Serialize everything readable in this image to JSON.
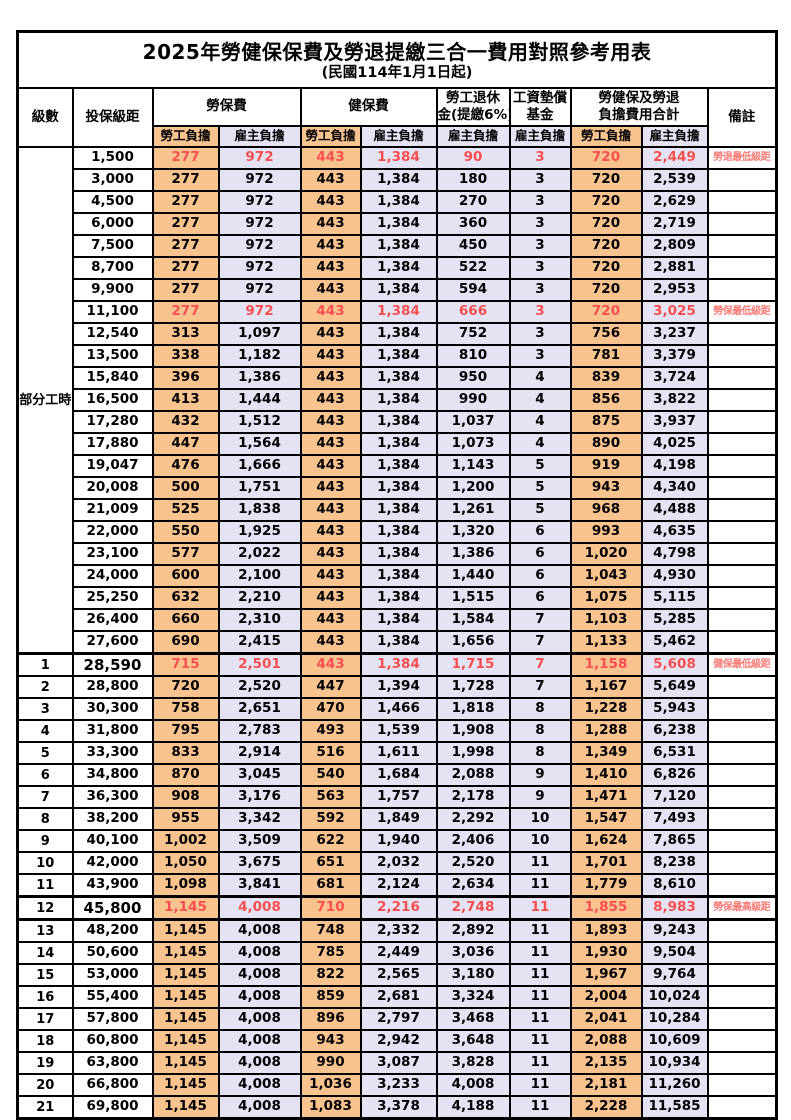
{
  "title": "2025年勞健保保費及勞退提繳三合一費用對照參考用表",
  "subtitle": "(民國114年1月1日起)",
  "header": {
    "level": "級數",
    "bracket": "投保級距",
    "labor_insurance": "勞保費",
    "health_insurance": "健保費",
    "pension_line1": "勞工退休",
    "pension_line2": "金(提繳6%)",
    "wage_fund_line1": "工資墊償",
    "wage_fund_line2": "基金",
    "total_line1": "勞健保及勞退",
    "total_line2": "負擔費用合計",
    "remark": "備註",
    "employee": "勞工負擔",
    "employer": "雇主負擔"
  },
  "part_time": {
    "label": "部分工時",
    "row_count": 23
  },
  "colors": {
    "employee_bg": "#f8c38e",
    "employer_bg": "#e4e3f3",
    "highlight_text": "#fb4f4f",
    "remark_text": "#fb7b76",
    "border": "#000000"
  },
  "rows": [
    {
      "lv": "",
      "bracket": "1,500",
      "v": [
        "277",
        "972",
        "443",
        "1,384",
        "90",
        "3",
        "720",
        "2,449"
      ],
      "remark": "勞退最低級距",
      "red": true
    },
    {
      "lv": "",
      "bracket": "3,000",
      "v": [
        "277",
        "972",
        "443",
        "1,384",
        "180",
        "3",
        "720",
        "2,539"
      ]
    },
    {
      "lv": "",
      "bracket": "4,500",
      "v": [
        "277",
        "972",
        "443",
        "1,384",
        "270",
        "3",
        "720",
        "2,629"
      ]
    },
    {
      "lv": "",
      "bracket": "6,000",
      "v": [
        "277",
        "972",
        "443",
        "1,384",
        "360",
        "3",
        "720",
        "2,719"
      ]
    },
    {
      "lv": "",
      "bracket": "7,500",
      "v": [
        "277",
        "972",
        "443",
        "1,384",
        "450",
        "3",
        "720",
        "2,809"
      ]
    },
    {
      "lv": "",
      "bracket": "8,700",
      "v": [
        "277",
        "972",
        "443",
        "1,384",
        "522",
        "3",
        "720",
        "2,881"
      ]
    },
    {
      "lv": "",
      "bracket": "9,900",
      "v": [
        "277",
        "972",
        "443",
        "1,384",
        "594",
        "3",
        "720",
        "2,953"
      ]
    },
    {
      "lv": "",
      "bracket": "11,100",
      "v": [
        "277",
        "972",
        "443",
        "1,384",
        "666",
        "3",
        "720",
        "3,025"
      ],
      "remark": "勞保最低級距",
      "red": true
    },
    {
      "lv": "",
      "bracket": "12,540",
      "v": [
        "313",
        "1,097",
        "443",
        "1,384",
        "752",
        "3",
        "756",
        "3,237"
      ]
    },
    {
      "lv": "",
      "bracket": "13,500",
      "v": [
        "338",
        "1,182",
        "443",
        "1,384",
        "810",
        "3",
        "781",
        "3,379"
      ]
    },
    {
      "lv": "",
      "bracket": "15,840",
      "v": [
        "396",
        "1,386",
        "443",
        "1,384",
        "950",
        "4",
        "839",
        "3,724"
      ]
    },
    {
      "lv": "",
      "bracket": "16,500",
      "v": [
        "413",
        "1,444",
        "443",
        "1,384",
        "990",
        "4",
        "856",
        "3,822"
      ]
    },
    {
      "lv": "",
      "bracket": "17,280",
      "v": [
        "432",
        "1,512",
        "443",
        "1,384",
        "1,037",
        "4",
        "875",
        "3,937"
      ]
    },
    {
      "lv": "",
      "bracket": "17,880",
      "v": [
        "447",
        "1,564",
        "443",
        "1,384",
        "1,073",
        "4",
        "890",
        "4,025"
      ]
    },
    {
      "lv": "",
      "bracket": "19,047",
      "v": [
        "476",
        "1,666",
        "443",
        "1,384",
        "1,143",
        "5",
        "919",
        "4,198"
      ]
    },
    {
      "lv": "",
      "bracket": "20,008",
      "v": [
        "500",
        "1,751",
        "443",
        "1,384",
        "1,200",
        "5",
        "943",
        "4,340"
      ]
    },
    {
      "lv": "",
      "bracket": "21,009",
      "v": [
        "525",
        "1,838",
        "443",
        "1,384",
        "1,261",
        "5",
        "968",
        "4,488"
      ]
    },
    {
      "lv": "",
      "bracket": "22,000",
      "v": [
        "550",
        "1,925",
        "443",
        "1,384",
        "1,320",
        "6",
        "993",
        "4,635"
      ]
    },
    {
      "lv": "",
      "bracket": "23,100",
      "v": [
        "577",
        "2,022",
        "443",
        "1,384",
        "1,386",
        "6",
        "1,020",
        "4,798"
      ]
    },
    {
      "lv": "",
      "bracket": "24,000",
      "v": [
        "600",
        "2,100",
        "443",
        "1,384",
        "1,440",
        "6",
        "1,043",
        "4,930"
      ]
    },
    {
      "lv": "",
      "bracket": "25,250",
      "v": [
        "632",
        "2,210",
        "443",
        "1,384",
        "1,515",
        "6",
        "1,075",
        "5,115"
      ]
    },
    {
      "lv": "",
      "bracket": "26,400",
      "v": [
        "660",
        "2,310",
        "443",
        "1,384",
        "1,584",
        "7",
        "1,103",
        "5,285"
      ]
    },
    {
      "lv": "",
      "bracket": "27,600",
      "v": [
        "690",
        "2,415",
        "443",
        "1,384",
        "1,656",
        "7",
        "1,133",
        "5,462"
      ]
    },
    {
      "lv": "1",
      "bracket": "28,590",
      "v": [
        "715",
        "2,501",
        "443",
        "1,384",
        "1,715",
        "7",
        "1,158",
        "5,608"
      ],
      "remark": "健保最低級距",
      "red": true,
      "bold": true,
      "thick_top": true
    },
    {
      "lv": "2",
      "bracket": "28,800",
      "v": [
        "720",
        "2,520",
        "447",
        "1,394",
        "1,728",
        "7",
        "1,167",
        "5,649"
      ]
    },
    {
      "lv": "3",
      "bracket": "30,300",
      "v": [
        "758",
        "2,651",
        "470",
        "1,466",
        "1,818",
        "8",
        "1,228",
        "5,943"
      ]
    },
    {
      "lv": "4",
      "bracket": "31,800",
      "v": [
        "795",
        "2,783",
        "493",
        "1,539",
        "1,908",
        "8",
        "1,288",
        "6,238"
      ]
    },
    {
      "lv": "5",
      "bracket": "33,300",
      "v": [
        "833",
        "2,914",
        "516",
        "1,611",
        "1,998",
        "8",
        "1,349",
        "6,531"
      ]
    },
    {
      "lv": "6",
      "bracket": "34,800",
      "v": [
        "870",
        "3,045",
        "540",
        "1,684",
        "2,088",
        "9",
        "1,410",
        "6,826"
      ]
    },
    {
      "lv": "7",
      "bracket": "36,300",
      "v": [
        "908",
        "3,176",
        "563",
        "1,757",
        "2,178",
        "9",
        "1,471",
        "7,120"
      ]
    },
    {
      "lv": "8",
      "bracket": "38,200",
      "v": [
        "955",
        "3,342",
        "592",
        "1,849",
        "2,292",
        "10",
        "1,547",
        "7,493"
      ]
    },
    {
      "lv": "9",
      "bracket": "40,100",
      "v": [
        "1,002",
        "3,509",
        "622",
        "1,940",
        "2,406",
        "10",
        "1,624",
        "7,865"
      ]
    },
    {
      "lv": "10",
      "bracket": "42,000",
      "v": [
        "1,050",
        "3,675",
        "651",
        "2,032",
        "2,520",
        "11",
        "1,701",
        "8,238"
      ]
    },
    {
      "lv": "11",
      "bracket": "43,900",
      "v": [
        "1,098",
        "3,841",
        "681",
        "2,124",
        "2,634",
        "11",
        "1,779",
        "8,610"
      ]
    },
    {
      "lv": "12",
      "bracket": "45,800",
      "v": [
        "1,145",
        "4,008",
        "710",
        "2,216",
        "2,748",
        "11",
        "1,855",
        "8,983"
      ],
      "remark": "勞保最高級距",
      "red": true,
      "bold": true,
      "thick_top": true,
      "thick_bottom": true
    },
    {
      "lv": "13",
      "bracket": "48,200",
      "v": [
        "1,145",
        "4,008",
        "748",
        "2,332",
        "2,892",
        "11",
        "1,893",
        "9,243"
      ]
    },
    {
      "lv": "14",
      "bracket": "50,600",
      "v": [
        "1,145",
        "4,008",
        "785",
        "2,449",
        "3,036",
        "11",
        "1,930",
        "9,504"
      ]
    },
    {
      "lv": "15",
      "bracket": "53,000",
      "v": [
        "1,145",
        "4,008",
        "822",
        "2,565",
        "3,180",
        "11",
        "1,967",
        "9,764"
      ]
    },
    {
      "lv": "16",
      "bracket": "55,400",
      "v": [
        "1,145",
        "4,008",
        "859",
        "2,681",
        "3,324",
        "11",
        "2,004",
        "10,024"
      ]
    },
    {
      "lv": "17",
      "bracket": "57,800",
      "v": [
        "1,145",
        "4,008",
        "896",
        "2,797",
        "3,468",
        "11",
        "2,041",
        "10,284"
      ]
    },
    {
      "lv": "18",
      "bracket": "60,800",
      "v": [
        "1,145",
        "4,008",
        "943",
        "2,942",
        "3,648",
        "11",
        "2,088",
        "10,609"
      ]
    },
    {
      "lv": "19",
      "bracket": "63,800",
      "v": [
        "1,145",
        "4,008",
        "990",
        "3,087",
        "3,828",
        "11",
        "2,135",
        "10,934"
      ]
    },
    {
      "lv": "20",
      "bracket": "66,800",
      "v": [
        "1,145",
        "4,008",
        "1,036",
        "3,233",
        "4,008",
        "11",
        "2,181",
        "11,260"
      ]
    },
    {
      "lv": "21",
      "bracket": "69,800",
      "v": [
        "1,145",
        "4,008",
        "1,083",
        "3,378",
        "4,188",
        "11",
        "2,228",
        "11,585"
      ]
    }
  ]
}
